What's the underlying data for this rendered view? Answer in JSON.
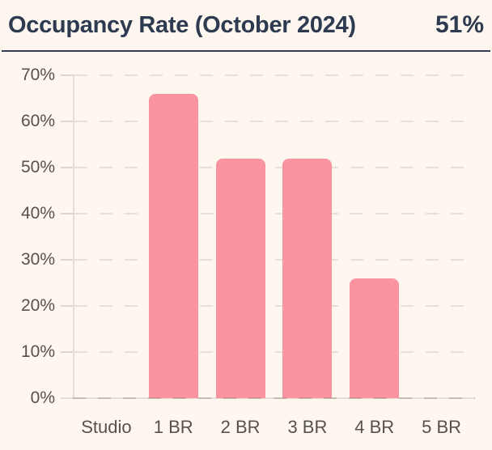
{
  "header": {
    "title": "Occupancy Rate (October 2024)",
    "value": "51%"
  },
  "chart_data": {
    "type": "bar",
    "title": "Occupancy Rate (October 2024)",
    "headline_value": "51%",
    "categories": [
      "Studio",
      "1 BR",
      "2 BR",
      "3 BR",
      "4 BR",
      "5 BR"
    ],
    "values": [
      0,
      66,
      52,
      52,
      26,
      0
    ],
    "unit": "%",
    "xlabel": "",
    "ylabel": "",
    "ylim": [
      0,
      70
    ],
    "ytick_step": 10,
    "ytick_labels": [
      "0%",
      "10%",
      "20%",
      "30%",
      "40%",
      "50%",
      "60%",
      "70%"
    ],
    "grid": "horizontal-dashed",
    "legend": "none",
    "colors": {
      "bar": "#f994a0",
      "background": "#fdf7f0",
      "title": "#2d3a50",
      "separator": "#323c4e",
      "axis_labels": "#56514b",
      "gridline": "#e7e0d6"
    }
  }
}
